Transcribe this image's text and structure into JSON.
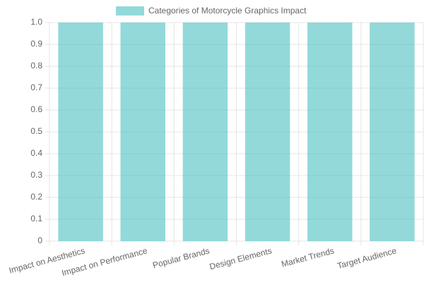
{
  "chart_data": {
    "type": "bar",
    "categories": [
      "Impact on Aesthetics",
      "Impact on Performance",
      "Popular Brands",
      "Design Elements",
      "Market Trends",
      "Target Audience"
    ],
    "series": [
      {
        "name": "Categories of Motorcycle Graphics Impact",
        "color": "rgba(75, 192, 192, 0.6)",
        "values": [
          1,
          1,
          1,
          1,
          1,
          1
        ]
      }
    ],
    "ylim": [
      0,
      1
    ],
    "yticks": [
      0,
      0.1,
      0.2,
      0.3,
      0.4,
      0.5,
      0.6,
      0.7,
      0.8,
      0.9,
      {
        "value": 1,
        "label": "1.0"
      }
    ],
    "grid": true,
    "legend": "top"
  }
}
